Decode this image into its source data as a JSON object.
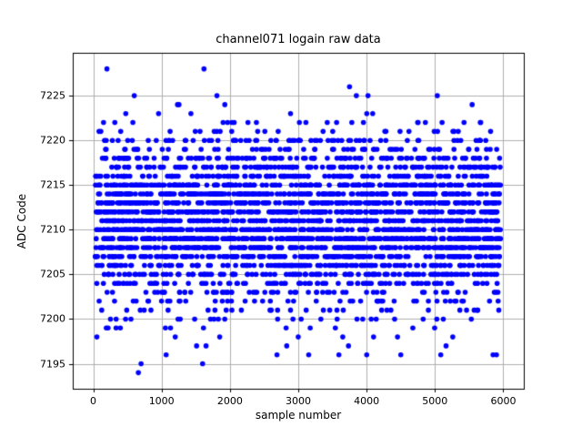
{
  "chart_data": {
    "type": "scatter",
    "title": "channel071 logain raw data",
    "xlabel": "sample number",
    "ylabel": "ADC Code",
    "xlim": [
      -300,
      6300
    ],
    "ylim": [
      7192.2,
      7229.8
    ],
    "xticks": [
      0,
      1000,
      2000,
      3000,
      4000,
      5000,
      6000
    ],
    "yticks": [
      7195,
      7200,
      7205,
      7210,
      7215,
      7220,
      7225
    ],
    "grid": true,
    "grid_color": "#b0b0b0",
    "marker_color": "#0000ff",
    "marker_radius": 2.8,
    "sample_x_min": 30,
    "sample_x_max": 5960,
    "seed": 42,
    "bands": [
      {
        "adc_code": 7196,
        "count": 6
      },
      {
        "adc_code": 7197,
        "count": 5
      },
      {
        "adc_code": 7198,
        "count": 8
      },
      {
        "adc_code": 7199,
        "count": 12
      },
      {
        "adc_code": 7200,
        "count": 25
      },
      {
        "adc_code": 7201,
        "count": 30
      },
      {
        "adc_code": 7202,
        "count": 45
      },
      {
        "adc_code": 7203,
        "count": 60
      },
      {
        "adc_code": 7204,
        "count": 90
      },
      {
        "adc_code": 7205,
        "count": 130
      },
      {
        "adc_code": 7206,
        "count": 155
      },
      {
        "adc_code": 7207,
        "count": 200
      },
      {
        "adc_code": 7208,
        "count": 230
      },
      {
        "adc_code": 7209,
        "count": 250
      },
      {
        "adc_code": 7210,
        "count": 260
      },
      {
        "adc_code": 7211,
        "count": 260
      },
      {
        "adc_code": 7212,
        "count": 250
      },
      {
        "adc_code": 7213,
        "count": 240
      },
      {
        "adc_code": 7214,
        "count": 220
      },
      {
        "adc_code": 7215,
        "count": 200
      },
      {
        "adc_code": 7216,
        "count": 150
      },
      {
        "adc_code": 7217,
        "count": 130
      },
      {
        "adc_code": 7218,
        "count": 110
      },
      {
        "adc_code": 7219,
        "count": 60
      },
      {
        "adc_code": 7220,
        "count": 70
      },
      {
        "adc_code": 7221,
        "count": 25
      },
      {
        "adc_code": 7222,
        "count": 22
      },
      {
        "adc_code": 7223,
        "count": 6
      },
      {
        "adc_code": 7224,
        "count": 4
      },
      {
        "adc_code": 7225,
        "count": 3
      }
    ],
    "outliers": [
      [
        200,
        7228
      ],
      [
        1620,
        7228
      ],
      [
        3750,
        7226
      ],
      [
        3850,
        7225
      ],
      [
        600,
        7225
      ],
      [
        660,
        7194
      ],
      [
        700,
        7195
      ],
      [
        1600,
        7195
      ],
      [
        4500,
        7196
      ],
      [
        5850,
        7196
      ],
      [
        5900,
        7196
      ]
    ]
  }
}
